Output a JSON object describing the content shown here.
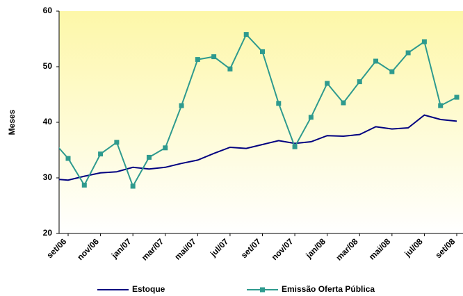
{
  "chart_data": {
    "type": "line",
    "y_label": "Meses",
    "categories": [
      null,
      "set/06",
      null,
      "nov/06",
      null,
      "jan/07",
      null,
      "mar/07",
      null,
      "mai/07",
      null,
      "jul/07",
      null,
      "set/07",
      null,
      "nov/07",
      null,
      "jan/08",
      null,
      "mar/08",
      null,
      "mai/08",
      null,
      "jul/08",
      null,
      "set/08"
    ],
    "series": [
      {
        "name": "Estoque",
        "color": "#000080",
        "marker": false,
        "values": [
          29.8,
          29.6,
          30.3,
          30.9,
          31.1,
          31.9,
          31.6,
          31.9,
          32.6,
          33.2,
          34.4,
          35.5,
          35.3,
          36.0,
          36.7,
          36.2,
          36.5,
          37.6,
          37.5,
          37.8,
          39.2,
          38.8,
          39.0,
          41.3,
          40.5,
          40.2
        ]
      },
      {
        "name": "Emissão Oferta Pública",
        "color": "#2e9a8e",
        "marker": true,
        "values": [
          36.8,
          33.5,
          28.7,
          34.3,
          36.4,
          28.5,
          33.7,
          35.4,
          43.0,
          51.3,
          51.8,
          49.6,
          55.8,
          52.7,
          43.4,
          35.6,
          40.9,
          47.0,
          43.5,
          47.3,
          51.0,
          49.1,
          52.5,
          54.5,
          43.0,
          44.5
        ]
      }
    ],
    "ylim": [
      20,
      60
    ],
    "yticks": [
      20,
      30,
      40,
      50,
      60
    ],
    "grid": false
  }
}
